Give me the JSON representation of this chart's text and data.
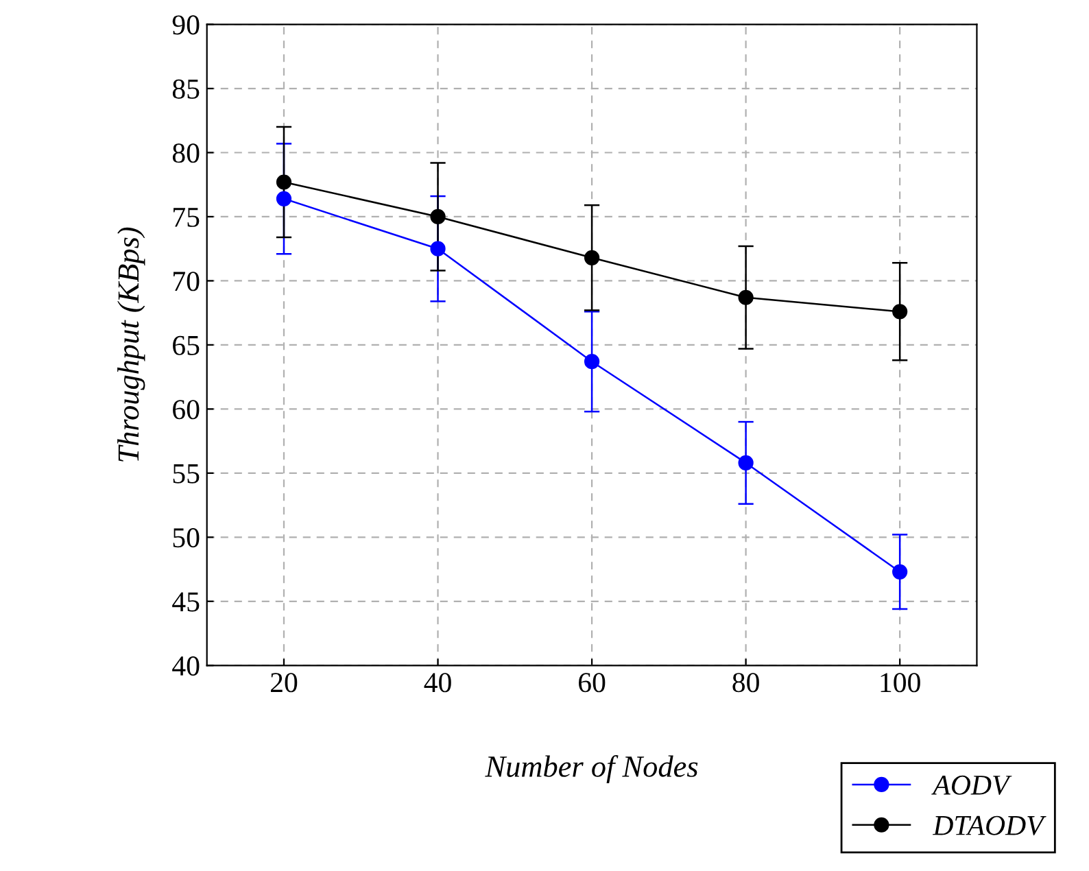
{
  "chart_data": {
    "type": "line",
    "xlabel": "Number of Nodes",
    "ylabel": "Throughput (KBps)",
    "x": [
      20,
      40,
      60,
      80,
      100
    ],
    "series": [
      {
        "name": "AODV",
        "color": "#0000ff",
        "values": [
          76.4,
          72.5,
          63.7,
          55.8,
          47.3
        ],
        "errors": [
          4.3,
          4.1,
          3.9,
          3.2,
          2.9
        ]
      },
      {
        "name": "DTAODV",
        "color": "#000000",
        "values": [
          77.7,
          75.0,
          71.8,
          68.7,
          67.6
        ],
        "errors": [
          4.3,
          4.2,
          4.1,
          4.0,
          3.8
        ]
      }
    ],
    "xlim": [
      10,
      110
    ],
    "ylim": [
      40,
      90
    ],
    "xticks": [
      20,
      40,
      60,
      80,
      100
    ],
    "yticks": [
      40,
      45,
      50,
      55,
      60,
      65,
      70,
      75,
      80,
      85,
      90
    ],
    "grid": true,
    "legend": "bottom right",
    "marker": "circle",
    "line_style": "solid"
  }
}
